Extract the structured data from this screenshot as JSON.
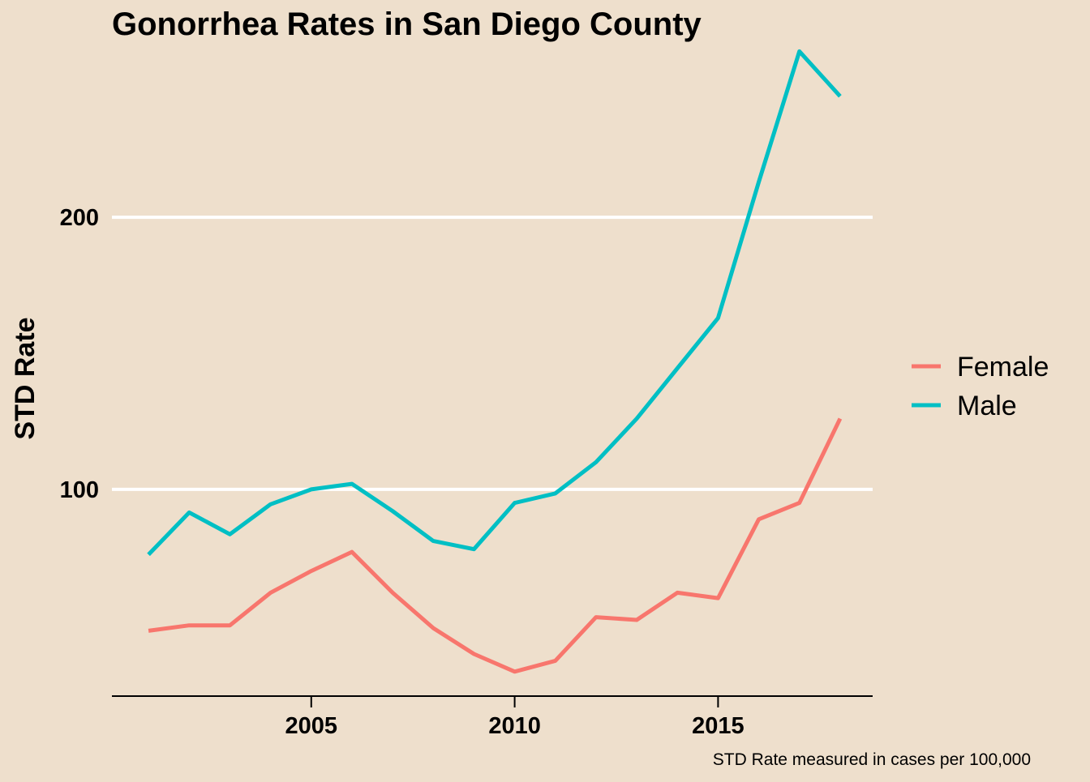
{
  "chart_data": {
    "type": "line",
    "title": "Gonorrhea Rates in San Diego County",
    "xlabel": "",
    "ylabel": "STD Rate",
    "caption": "STD Rate measured in cases per 100,000",
    "xlim": [
      2000.1,
      2018.8
    ],
    "ylim": [
      24,
      262
    ],
    "x_ticks": [
      2005,
      2010,
      2015
    ],
    "y_ticks": [
      100,
      200
    ],
    "grid": {
      "horizontal": true,
      "vertical": false
    },
    "legend_position": "right",
    "x": [
      2001,
      2002,
      2003,
      2004,
      2005,
      2006,
      2007,
      2008,
      2009,
      2010,
      2011,
      2012,
      2013,
      2014,
      2015,
      2016,
      2017,
      2018
    ],
    "series": [
      {
        "name": "Female",
        "color": "#f8766d",
        "values": [
          48,
          50,
          50,
          62,
          70,
          77,
          62,
          49,
          39.5,
          33,
          37,
          53,
          52,
          62,
          60,
          89,
          95,
          126
        ]
      },
      {
        "name": "Male",
        "color": "#00bfc4",
        "values": [
          76,
          91.5,
          83.5,
          94.5,
          100,
          102,
          92,
          81,
          78,
          95,
          98.5,
          110,
          126,
          144.5,
          163,
          213,
          261,
          244.5
        ]
      }
    ]
  }
}
